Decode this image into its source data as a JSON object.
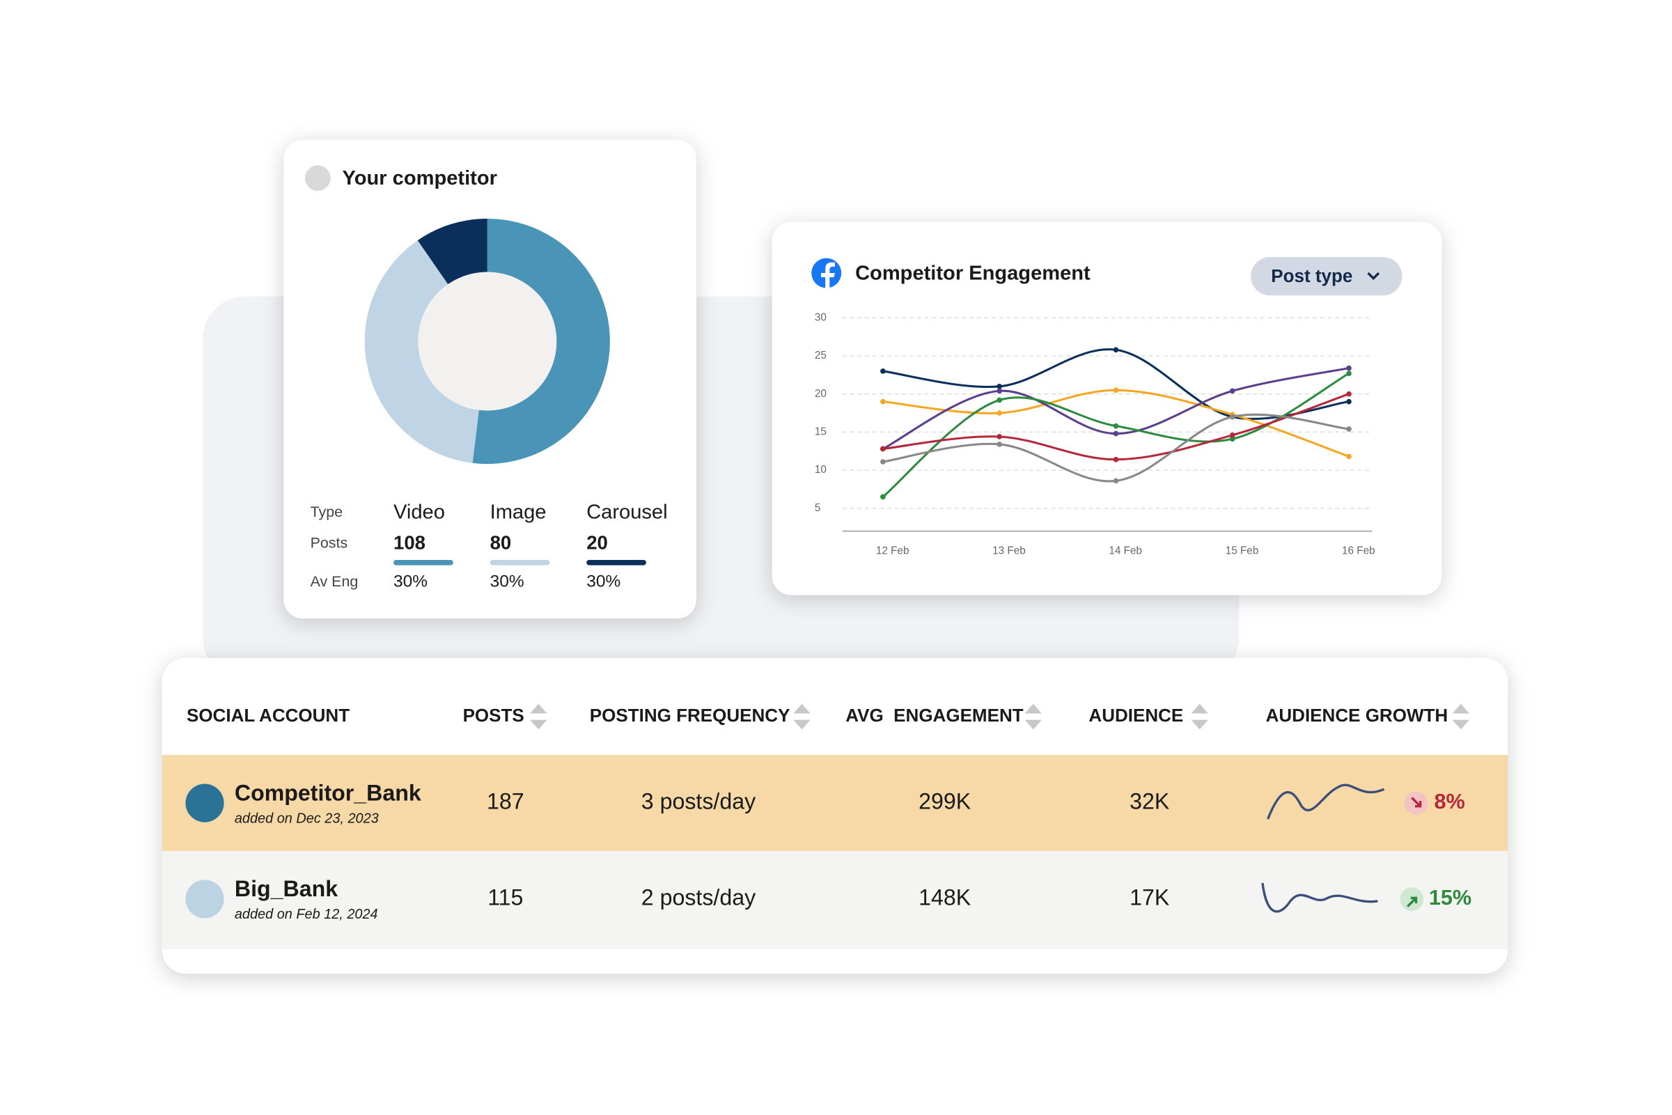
{
  "chart_data": [
    {
      "type": "donut",
      "title": "Your competitor",
      "row_labels": [
        "Type",
        "Posts",
        "Av Eng"
      ],
      "categories": [
        "Video",
        "Image",
        "Carousel"
      ],
      "values": [
        108,
        80,
        20
      ],
      "colors": [
        "#4a94b8",
        "#bfd4e4",
        "#0a2f5a"
      ],
      "av_eng": [
        "30%",
        "30%",
        "30%"
      ]
    },
    {
      "type": "line",
      "title": "Competitor Engagement",
      "button": "Post type",
      "categories": [
        "12 Feb",
        "13 Feb",
        "14 Feb",
        "15 Feb",
        "16 Feb"
      ],
      "series": [
        {
          "color": "#0a2f5a",
          "values": [
            23,
            21,
            25.8,
            17,
            19
          ]
        },
        {
          "color": "#f5a623",
          "values": [
            19,
            17.5,
            20.5,
            17.3,
            11.8
          ]
        },
        {
          "color": "#5b3f8c",
          "values": [
            12.8,
            20.4,
            14.8,
            20.4,
            23.4
          ]
        },
        {
          "color": "#2e8b3e",
          "values": [
            6.5,
            19.2,
            15.8,
            14.1,
            22.7
          ]
        },
        {
          "color": "#b5283b",
          "values": [
            12.8,
            14.4,
            11.4,
            14.6,
            20
          ]
        },
        {
          "color": "#888888",
          "values": [
            11.1,
            13.4,
            8.6,
            17,
            15.4
          ]
        }
      ],
      "ylim": [
        2,
        30
      ],
      "yticks": [
        5,
        10,
        15,
        20,
        25,
        30
      ],
      "grid": true
    }
  ],
  "table": {
    "headers": [
      "SOCIAL ACCOUNT",
      "POSTS",
      "POSTING FREQUENCY",
      "AVG  ENGAGEMENT",
      "AUDIENCE",
      "AUDIENCE GROWTH"
    ],
    "rows": [
      {
        "account": "Competitor_Bank",
        "added": "added on Dec 23, 2023",
        "posts": 187,
        "frequency": "3 posts/day",
        "engagement": "299K",
        "audience": "32K",
        "growth": "8%"
      },
      {
        "account": "Big_Bank",
        "added": "added on Feb 12, 2024",
        "posts": 115,
        "frequency": "2 posts/day",
        "engagement": "148K",
        "audience": "17K",
        "growth": "15%"
      }
    ]
  }
}
